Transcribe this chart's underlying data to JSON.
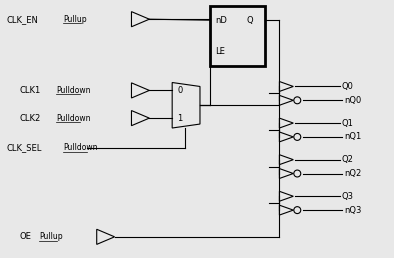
{
  "fig_width": 3.94,
  "fig_height": 2.58,
  "dpi": 100,
  "bg_color": "#e8e8e8",
  "line_color": "#000000",
  "box_color": "#000000",
  "text_color": "#000000",
  "font_size": 6.0,
  "small_font": 5.5,
  "outputs": [
    "Q0",
    "nQ0",
    "Q1",
    "nQ1",
    "Q2",
    "nQ2",
    "Q3",
    "nQ3"
  ]
}
